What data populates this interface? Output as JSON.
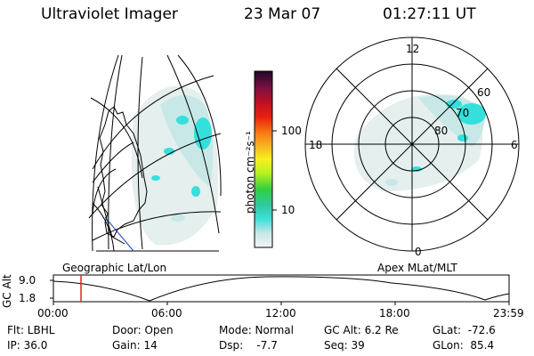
{
  "header": {
    "instrument": "Ultraviolet Imager",
    "date": "23 Mar 07",
    "time": "01:27:11 UT"
  },
  "colorbar": {
    "unit_label": "photon cm⁻²s⁻¹",
    "ticks": [
      "100",
      "10"
    ]
  },
  "geo_panel": {
    "label": "Geographic Lat/Lon"
  },
  "polar_panel": {
    "label": "Apex MLat/MLT",
    "mlt_labels": {
      "top": "12",
      "left": "18",
      "right": "6",
      "bottom": "0"
    },
    "lat_labels": [
      "60",
      "70",
      "80"
    ]
  },
  "altitude_plot": {
    "ylabel": "GC Alt",
    "y_ticks": [
      "9.0",
      "1.8"
    ],
    "x_ticks": [
      "00:00",
      "06:00",
      "12:00",
      "18:00",
      "23:59"
    ],
    "current_time_fraction": 0.0606
  },
  "status": {
    "filter": "Flt: LBHL",
    "ip": "IP: 36.0",
    "door": "Door: Open",
    "gain": "Gain: 14",
    "mode": "Mode: Normal",
    "dsp": "Dsp:    -7.7",
    "gc_alt": "GC Alt: 6.2 Re",
    "seq": "Seq: 39",
    "glat": "GLat:  -72.6",
    "glon": "GLon:  85.4"
  },
  "colors": {
    "cyan": "#33e0dc",
    "light_cyan": "#c7e8e6",
    "pale": "#e4efee",
    "marker": "#e02020"
  }
}
